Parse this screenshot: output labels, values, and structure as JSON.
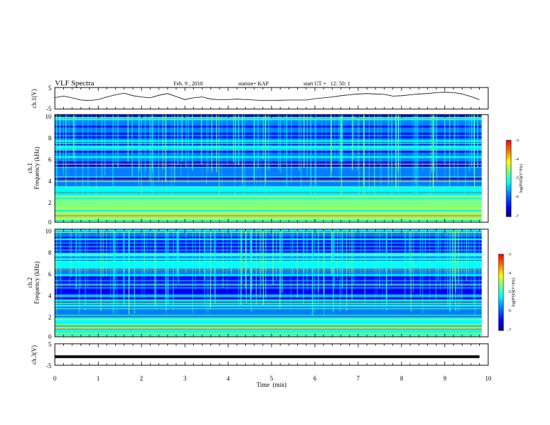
{
  "header": {
    "title": "VLF Spectra",
    "date": "Feb. 9 , 2018",
    "station": "station= KAP",
    "start": "start UT =   12: 50: 1"
  },
  "chart_data": [
    {
      "type": "line",
      "panel": "ch1-waveform",
      "ylabel": "ch.1(V)",
      "ylim": [
        -5,
        5
      ],
      "xlim": [
        0,
        10
      ],
      "yticks": [
        "5",
        "-5"
      ],
      "series": [
        {
          "x": [
            0,
            0.2,
            0.4,
            0.6,
            0.8,
            1.0,
            1.2,
            1.4,
            1.6,
            1.8,
            2.0,
            2.2,
            2.4,
            2.6,
            2.8,
            3.0,
            3.2,
            3.4,
            3.6,
            3.8,
            4.0,
            4.2,
            4.4,
            4.6,
            4.8,
            5.0,
            5.2,
            5.4,
            5.6,
            5.8,
            6.0,
            6.2,
            6.4,
            6.6,
            6.8,
            7.0,
            7.2,
            7.4,
            7.6,
            7.8,
            8.0,
            8.2,
            8.4,
            8.6,
            8.8,
            9.0,
            9.2,
            9.4,
            9.6,
            9.8
          ],
          "y": [
            0.3,
            1.0,
            0.2,
            -0.8,
            -1.0,
            -0.6,
            0.6,
            1.6,
            2.4,
            1.2,
            0.6,
            0.2,
            1.4,
            2.2,
            0.8,
            -0.6,
            0.2,
            0.6,
            -0.4,
            -0.6,
            -0.6,
            -0.4,
            -0.6,
            -0.8,
            -1.0,
            -1.0,
            -0.9,
            -0.8,
            -0.8,
            -0.8,
            -0.2,
            0.2,
            0.6,
            1.2,
            1.6,
            2.0,
            2.2,
            2.0,
            1.8,
            1.0,
            1.2,
            1.6,
            2.0,
            2.2,
            2.6,
            2.8,
            2.6,
            2.0,
            0.8,
            -0.6
          ]
        }
      ]
    },
    {
      "type": "heatmap",
      "panel": "ch1-spectrogram",
      "ylabel": "ch.1\nFrequency (kHz)",
      "ylim": [
        0,
        10
      ],
      "xlim": [
        0,
        10
      ],
      "yticks": [
        "0",
        "2",
        "4",
        "6",
        "8",
        "10"
      ],
      "colorbar": {
        "label": "log(PSD)(V²/Hz)",
        "range": [
          -7,
          -3
        ],
        "ticks": [
          "-3",
          "-4",
          "-5",
          "-6",
          "-7"
        ]
      },
      "lines_khz": [
        0.3,
        0.6,
        0.9,
        1.3,
        1.6,
        2.0,
        2.4,
        2.7,
        3.3,
        3.8,
        4.2,
        5.1,
        5.4,
        6.7,
        7.3,
        9.7
      ]
    },
    {
      "type": "heatmap",
      "panel": "ch2-spectrogram",
      "ylabel": "ch.2\nFrequency (kHz)",
      "ylim": [
        0,
        10
      ],
      "xlim": [
        0,
        10
      ],
      "yticks": [
        "0",
        "2",
        "4",
        "6",
        "8",
        "10"
      ],
      "colorbar": {
        "label": "log(PSD)(V²/Hz)",
        "range": [
          -7,
          -3
        ],
        "ticks": [
          "-3",
          "-4",
          "-5",
          "-6",
          "-7"
        ]
      },
      "lines_khz": [
        0.3,
        0.7,
        1.1,
        1.6,
        2.0,
        2.6,
        3.1,
        3.8,
        4.8,
        6.2,
        7.0,
        7.6,
        9.7
      ]
    },
    {
      "type": "line",
      "panel": "ch3-waveform",
      "ylabel": "ch.3(V)",
      "ylim": [
        -5,
        5
      ],
      "xlim": [
        0,
        10
      ],
      "yticks": [
        "5",
        "-5"
      ],
      "series": [
        {
          "x": [
            0,
            9.8
          ],
          "y": [
            -1,
            -1
          ]
        }
      ]
    }
  ],
  "xaxis": {
    "label": "Time  (min)",
    "ticks": [
      "0",
      "1",
      "2",
      "3",
      "4",
      "5",
      "6",
      "7",
      "8",
      "9",
      "10"
    ]
  },
  "colors": {
    "jet": [
      "#00007f",
      "#0000ff",
      "#007fff",
      "#00ffff",
      "#7fff7f",
      "#ffff00",
      "#ff7f00",
      "#ff0000",
      "#7f0000"
    ]
  }
}
